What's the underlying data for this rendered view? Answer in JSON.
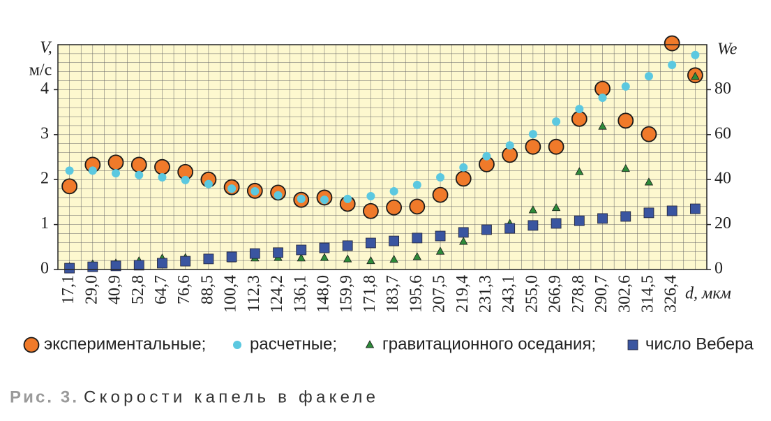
{
  "chart_data": {
    "type": "scatter",
    "title": "Скорости капель в факеле",
    "figure_label": "Рис. 3.",
    "y_label": "V,",
    "y_unit": "м/с",
    "y2_label": "We",
    "x_label": "d, мкм",
    "categories": [
      "17,1",
      "29,0",
      "40,9",
      "52,8",
      "64,7",
      "76,6",
      "88,5",
      "100,4",
      "112,3",
      "124,2",
      "136,1",
      "148,0",
      "159,9",
      "171,8",
      "183,7",
      "195,6",
      "207,5",
      "219,4",
      "231,3",
      "243,1",
      "255,0",
      "266,9",
      "278,8",
      "290,7",
      "302,6",
      "314,5",
      "326,4",
      null
    ],
    "ylim": [
      0,
      5
    ],
    "yticks": [
      0,
      1,
      2,
      3,
      4
    ],
    "y2lim": [
      0,
      100
    ],
    "y2ticks": [
      0,
      20,
      40,
      60,
      80
    ],
    "grid": true,
    "series": [
      {
        "name": "экспериментальные;",
        "color": "#f07a2a",
        "marker": "circle-large",
        "values": [
          1.85,
          2.33,
          2.38,
          2.33,
          2.28,
          2.17,
          2.0,
          1.83,
          1.75,
          1.71,
          1.55,
          1.6,
          1.46,
          1.3,
          1.38,
          1.4,
          1.66,
          2.02,
          2.34,
          2.55,
          2.73,
          2.73,
          3.35,
          4.02,
          3.31,
          3.01,
          5.03,
          4.32
        ]
      },
      {
        "name": "расчетные;",
        "color": "#5bc8e0",
        "marker": "circle-small",
        "values": [
          2.2,
          2.2,
          2.14,
          2.1,
          2.05,
          1.99,
          1.9,
          1.8,
          1.74,
          1.65,
          1.57,
          1.55,
          1.57,
          1.63,
          1.74,
          1.88,
          2.05,
          2.27,
          2.52,
          2.76,
          3.01,
          3.29,
          3.57,
          3.82,
          4.07,
          4.3,
          4.55,
          4.77
        ]
      },
      {
        "name": "гравитационного оседания;",
        "color": "#2e8b3a",
        "marker": "triangle",
        "values": [
          0.06,
          0.12,
          0.14,
          0.19,
          0.25,
          0.26,
          0.23,
          0.23,
          0.25,
          0.26,
          0.25,
          0.26,
          0.23,
          0.19,
          0.22,
          0.28,
          0.4,
          0.62,
          0.89,
          1.02,
          1.32,
          1.37,
          2.17,
          3.18,
          2.24,
          1.94,
          null,
          4.29
        ]
      },
      {
        "name": "число Вебера",
        "color": "#3a55a0",
        "marker": "square",
        "axis": "y2",
        "values": [
          0.6,
          1.2,
          1.6,
          1.9,
          2.8,
          3.7,
          4.7,
          5.6,
          7.1,
          7.5,
          8.7,
          9.6,
          10.6,
          11.8,
          12.7,
          14.0,
          14.9,
          16.5,
          17.7,
          18.3,
          19.6,
          20.5,
          21.7,
          22.7,
          23.6,
          25.2,
          26.1,
          27.0
        ]
      }
    ]
  }
}
